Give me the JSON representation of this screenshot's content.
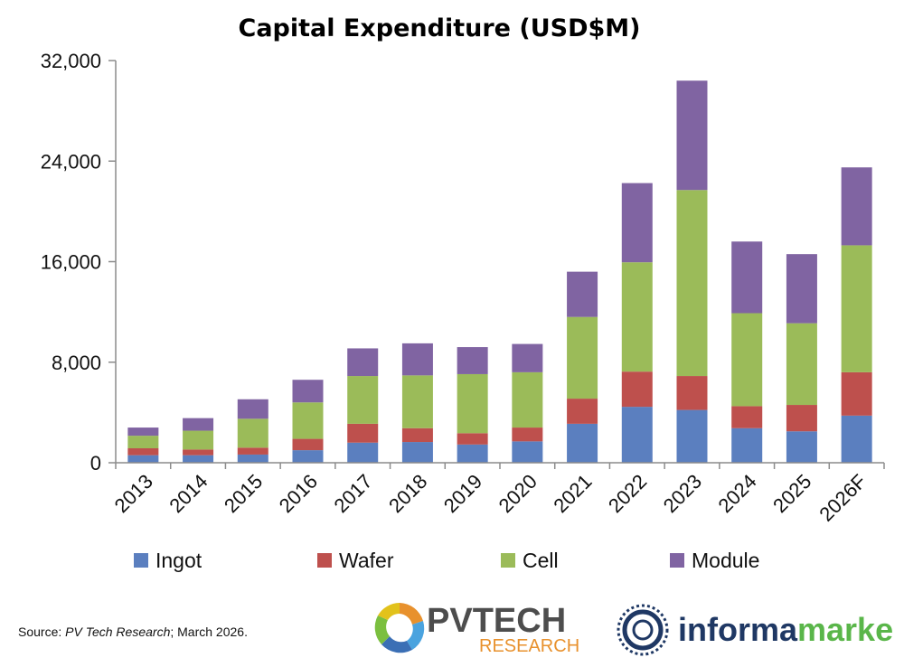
{
  "colors": {
    "Ingot": "#5B7FBF",
    "Wafer": "#BE504D",
    "Cell": "#9BBB59",
    "Module": "#8064A2",
    "axis": "#8c8c8c",
    "pvtech_gray": "#4d4d4d",
    "pvtech_orange": "#E8912D",
    "informa_blue": "#1f3864",
    "informa_green": "#5ab64a"
  },
  "chart_data": {
    "type": "bar",
    "stacked": true,
    "title": "Capital Expenditure (USD$M)",
    "xlabel": "",
    "ylabel": "",
    "ylim": [
      0,
      32000
    ],
    "yticks": [
      0,
      8000,
      16000,
      24000,
      32000
    ],
    "ytick_labels": [
      "0",
      "8,000",
      "16,000",
      "24,000",
      "32,000"
    ],
    "grid": false,
    "legend_position": "bottom",
    "categories": [
      "2013",
      "2014",
      "2015",
      "2016",
      "2017",
      "2018",
      "2019",
      "2020",
      "2021",
      "2022",
      "2023",
      "2024",
      "2025",
      "2026F"
    ],
    "series": [
      {
        "name": "Ingot",
        "values": [
          600,
          600,
          650,
          1000,
          1600,
          1650,
          1450,
          1700,
          3100,
          4450,
          4200,
          2750,
          2500,
          3750
        ]
      },
      {
        "name": "Wafer",
        "values": [
          550,
          450,
          550,
          900,
          1500,
          1100,
          900,
          1100,
          2000,
          2800,
          2700,
          1750,
          2100,
          3450
        ]
      },
      {
        "name": "Cell",
        "values": [
          1000,
          1500,
          2300,
          2900,
          3800,
          4200,
          4700,
          4400,
          6500,
          8700,
          14800,
          7400,
          6500,
          10100
        ]
      },
      {
        "name": "Module",
        "values": [
          650,
          1000,
          1550,
          1800,
          2200,
          2550,
          2150,
          2250,
          3600,
          6300,
          8700,
          5700,
          5500,
          6200
        ]
      }
    ]
  },
  "source": {
    "prefix": "Source: ",
    "italic": "PV Tech Research",
    "suffix": "; March 2026."
  },
  "logos": {
    "pvtech_top": "PVTECH",
    "pvtech_bottom": "RESEARCH",
    "informa_left": "informa",
    "informa_right": "markets"
  }
}
